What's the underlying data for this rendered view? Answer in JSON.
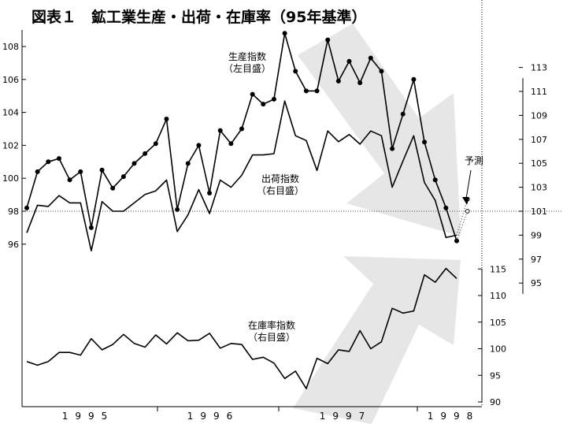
{
  "title": "図表１　鉱工業生産・出荷・在庫率（95年基準）",
  "forecast_label": "予測",
  "colors": {
    "line": "#000000",
    "arrow": "#e6e6e6",
    "dotted": "#444444"
  },
  "chart_data": {
    "type": "line",
    "title": "図表１　鉱工業生産・出荷・在庫率（95年基準）",
    "x_labels": [
      "1995",
      "1996",
      "1997",
      "1998"
    ],
    "left_axis": {
      "ticks": [
        96,
        98,
        100,
        102,
        104,
        106,
        108
      ],
      "ylim": [
        95.5,
        109.5
      ]
    },
    "right_axis_upper": {
      "ticks": [
        95,
        97,
        99,
        101,
        103,
        105,
        107,
        109,
        111,
        113
      ],
      "ylim": [
        95,
        113
      ]
    },
    "right_axis_lower": {
      "ticks": [
        90,
        95,
        100,
        105,
        110,
        115
      ],
      "ylim": [
        90,
        115
      ]
    },
    "series": [
      {
        "name": "生産指数",
        "label_lines": [
          "生産指数",
          "（左目盛）"
        ],
        "axis": "left",
        "markers": true,
        "start_month": 0,
        "values": [
          98.2,
          100.4,
          101.0,
          101.2,
          99.9,
          100.4,
          97.0,
          100.5,
          99.4,
          100.1,
          100.9,
          101.5,
          102.1,
          103.6,
          98.1,
          100.9,
          102.0,
          99.1,
          102.9,
          102.1,
          103.0,
          105.1,
          104.5,
          104.8,
          108.8,
          106.5,
          105.3,
          105.3,
          108.4,
          105.9,
          107.1,
          105.8,
          107.3,
          106.5,
          101.8,
          103.9,
          106.0,
          102.2,
          99.9,
          98.2,
          96.2
        ],
        "forecast": [
          96.2,
          98.0
        ]
      },
      {
        "name": "出荷指数",
        "label_lines": [
          "出荷指数",
          "（右目盛）"
        ],
        "axis": "right_upper",
        "markers": false,
        "start_month": 0,
        "values": [
          99.2,
          101.5,
          101.4,
          102.3,
          101.7,
          101.7,
          97.7,
          101.8,
          101.0,
          101.0,
          101.7,
          102.4,
          102.7,
          103.6,
          99.3,
          100.7,
          102.8,
          100.8,
          103.6,
          103.0,
          104.0,
          105.7,
          105.7,
          105.8,
          110.2,
          107.3,
          106.9,
          104.4,
          107.7,
          106.8,
          107.4,
          106.6,
          107.7,
          107.3,
          103.0,
          105.2,
          107.3,
          103.4,
          101.9,
          98.8,
          99.0
        ],
        "forecast": [
          99.0,
          102.0
        ]
      },
      {
        "name": "在庫率指数",
        "label_lines": [
          "在庫率指数",
          "（右目盛）"
        ],
        "axis": "right_lower",
        "markers": false,
        "start_month": 0,
        "values": [
          97.6,
          96.9,
          97.6,
          99.3,
          99.3,
          98.8,
          101.9,
          99.8,
          100.8,
          102.7,
          101.0,
          100.3,
          102.6,
          100.9,
          103.0,
          101.5,
          101.6,
          102.9,
          100.1,
          101.0,
          100.8,
          98.0,
          98.4,
          97.3,
          94.4,
          95.8,
          92.5,
          98.2,
          97.2,
          99.8,
          99.5,
          103.4,
          100.0,
          101.3,
          107.6,
          106.7,
          107.1,
          113.9,
          112.5,
          115.1,
          113.2
        ]
      }
    ]
  }
}
